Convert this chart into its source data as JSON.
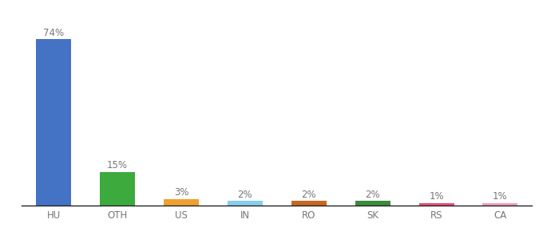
{
  "categories": [
    "HU",
    "OTH",
    "US",
    "IN",
    "RO",
    "SK",
    "RS",
    "CA"
  ],
  "values": [
    74,
    15,
    3,
    2,
    2,
    2,
    1,
    1
  ],
  "bar_colors": [
    "#4472C4",
    "#3DAA3D",
    "#F0A030",
    "#87CEEB",
    "#C86820",
    "#3A8C3A",
    "#E8507A",
    "#F4A0B8"
  ],
  "ylim": [
    0,
    84
  ],
  "background_color": "#ffffff",
  "label_fontsize": 8.5,
  "tick_fontsize": 8.5,
  "label_color": "#777777",
  "tick_color": "#777777",
  "bar_width": 0.55
}
